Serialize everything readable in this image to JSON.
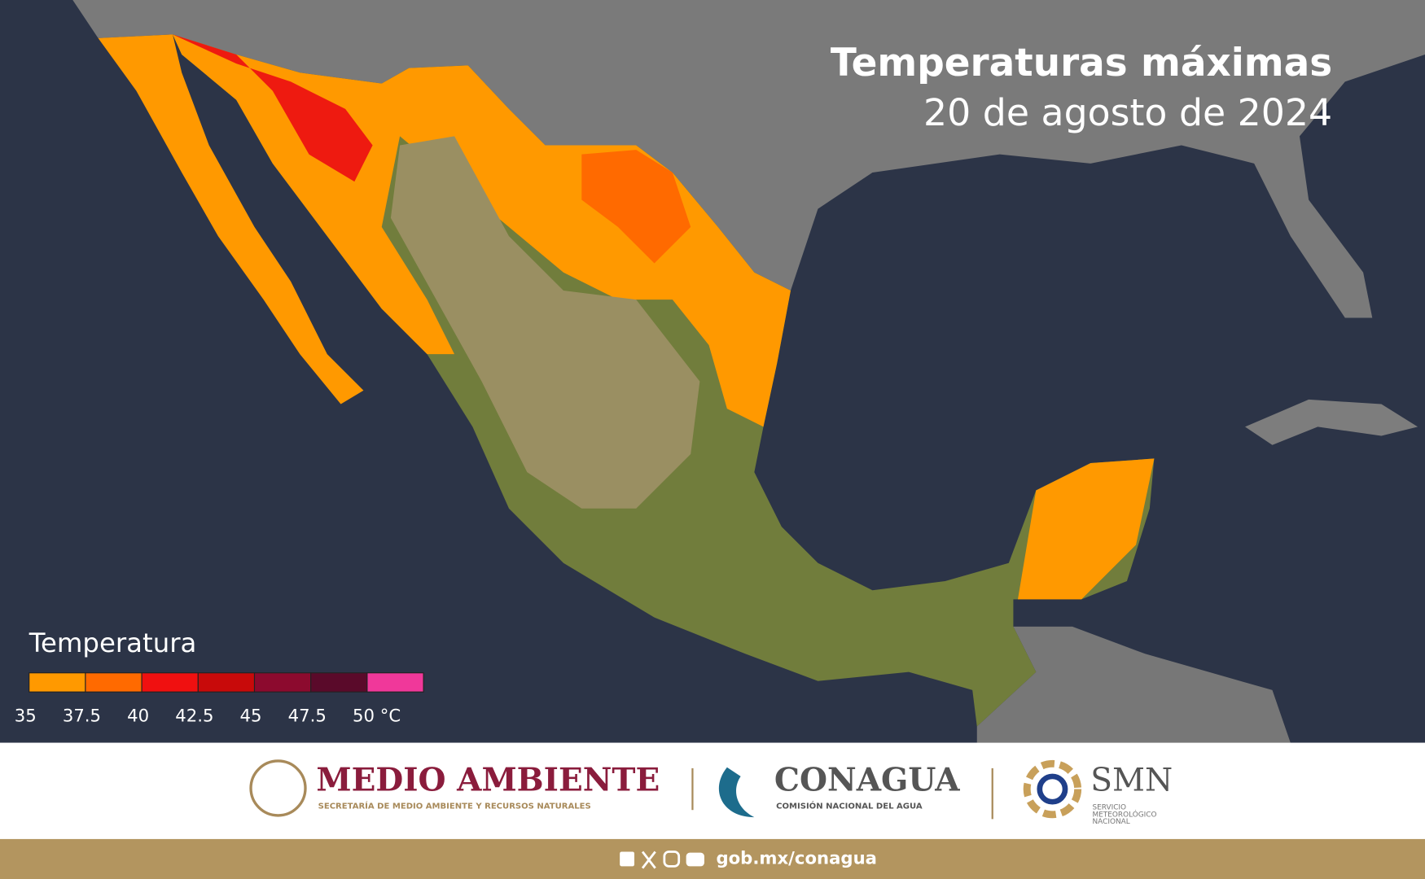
{
  "header": {
    "title": "Temperaturas máximas",
    "subtitle": "20 de agosto de 2024"
  },
  "legend": {
    "title": "Temperatura",
    "colors": [
      "#ff9900",
      "#ff6a00",
      "#f01010",
      "#c80a0a",
      "#8c0a2e",
      "#5a0a2a",
      "#f0389a"
    ],
    "ticks": [
      35,
      37.5,
      40,
      42.5,
      45,
      47.5,
      {
        "value": 50,
        "label": "50 °C"
      }
    ]
  },
  "footer": {
    "semarnat": {
      "name": "MEDIO AMBIENTE",
      "subtitle": "SECRETARÍA DE MEDIO AMBIENTE Y RECURSOS NATURALES"
    },
    "conagua": {
      "name": "CONAGUA",
      "subtitle": "COMISIÓN NACIONAL DEL AGUA"
    },
    "smn": {
      "name": "SMN",
      "subtitle": [
        "SERVICIO",
        "METEOROLÓGICO",
        "NACIONAL"
      ]
    },
    "url": "gob.mx/conagua"
  }
}
